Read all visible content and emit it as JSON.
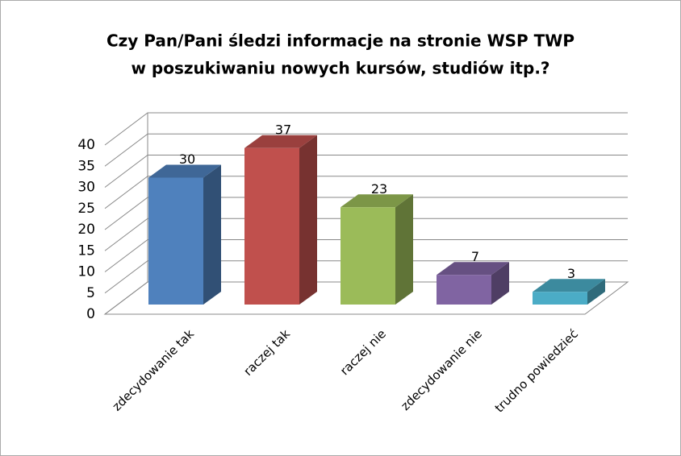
{
  "chart_data": {
    "type": "bar3d",
    "title_lines": [
      "Czy Pan/Pani śledzi informacje na stronie WSP TWP",
      "w poszukiwaniu nowych kursów, studiów itp.?"
    ],
    "categories": [
      "zdecydowanie tak",
      "raczej tak",
      "raczej nie",
      "zdecydowanie nie",
      "trudno powiedzieć"
    ],
    "values": [
      30,
      37,
      23,
      7,
      3
    ],
    "colors": [
      "#4f81bd",
      "#c0504d",
      "#9bbb59",
      "#8064a2",
      "#4bacc6"
    ],
    "ylim": [
      0,
      40
    ],
    "yticks": [
      0,
      5,
      10,
      15,
      20,
      25,
      30,
      35,
      40
    ],
    "grid": true
  }
}
